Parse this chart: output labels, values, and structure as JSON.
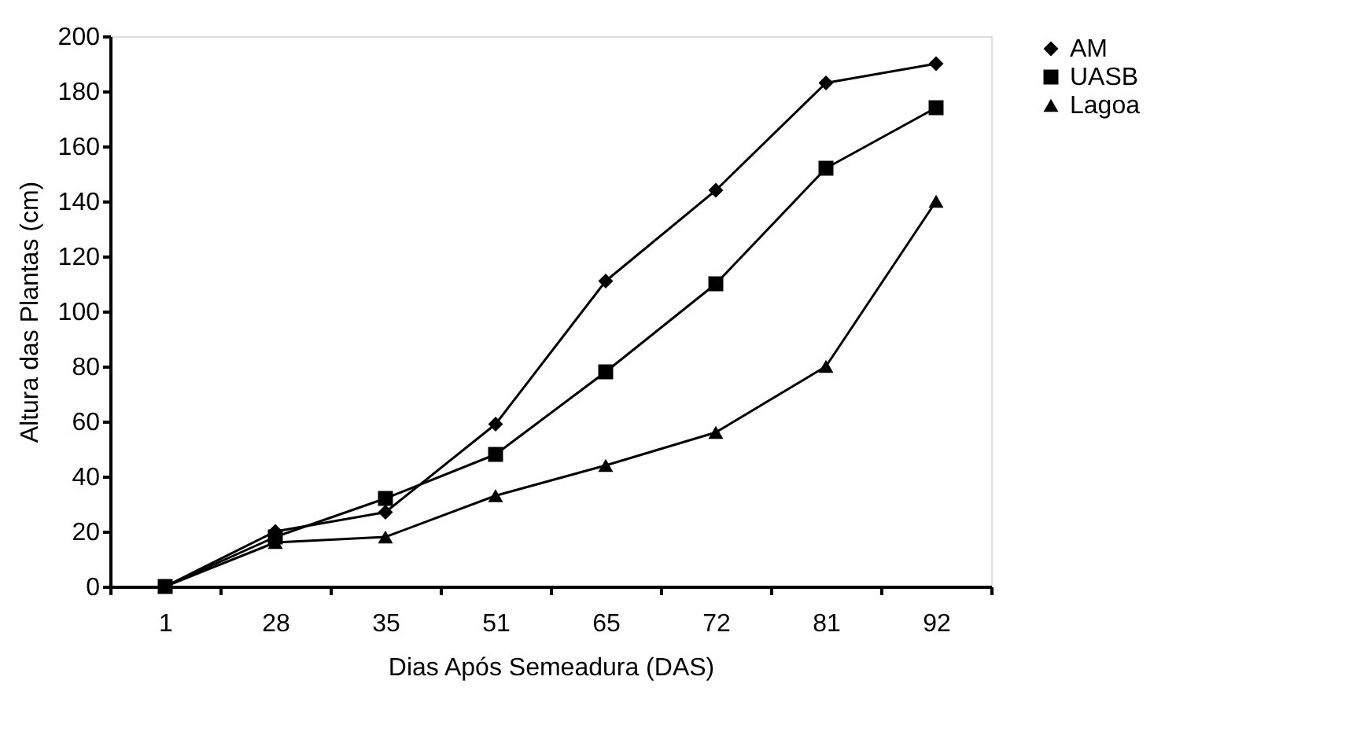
{
  "chart_data": {
    "type": "line",
    "xlabel": "Dias Após Semeadura (DAS)",
    "ylabel": "Altura das Plantas (cm)",
    "categories": [
      "1",
      "28",
      "35",
      "51",
      "65",
      "72",
      "81",
      "92"
    ],
    "series": [
      {
        "name": "AM",
        "color": "#000000",
        "marker": "diamond",
        "values": [
          0,
          20,
          27,
          59,
          111,
          144,
          183,
          190
        ]
      },
      {
        "name": "UASB",
        "color": "#000000",
        "marker": "square",
        "values": [
          0,
          18,
          32,
          48,
          78,
          110,
          152,
          174
        ]
      },
      {
        "name": "Lagoa",
        "color": "#000000",
        "marker": "triangle",
        "values": [
          0,
          16,
          18,
          33,
          44,
          56,
          80,
          140
        ]
      }
    ],
    "ylim": [
      0,
      200
    ],
    "yticks": [
      0,
      20,
      40,
      60,
      80,
      100,
      120,
      140,
      160,
      180,
      200
    ],
    "grid": false,
    "legend": "top right",
    "line_style": "solid"
  }
}
